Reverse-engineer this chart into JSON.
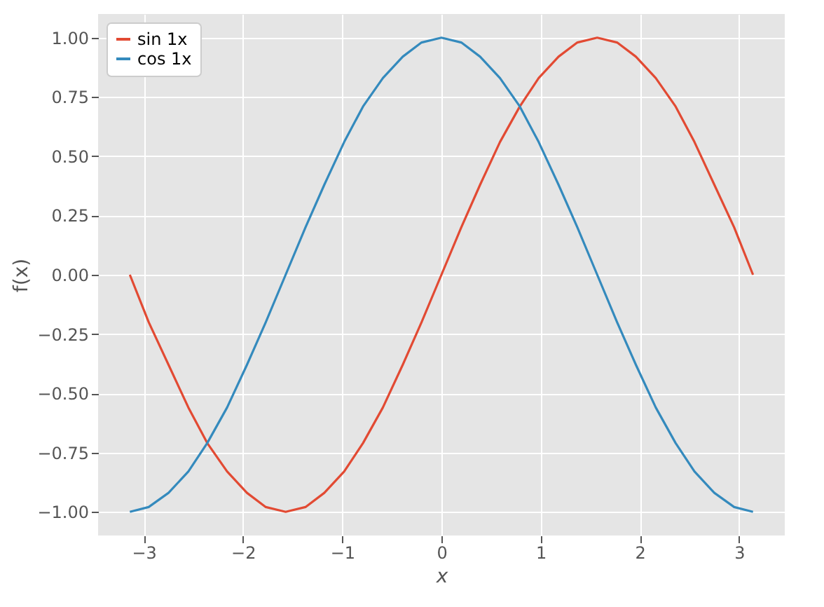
{
  "chart_data": {
    "type": "line",
    "xlabel": "x",
    "ylabel": "f(x)",
    "x": [
      -3.14,
      -2.95,
      -2.75,
      -2.55,
      -2.36,
      -2.16,
      -1.96,
      -1.77,
      -1.57,
      -1.37,
      -1.18,
      -0.98,
      -0.79,
      -0.59,
      -0.39,
      -0.2,
      0,
      0.2,
      0.39,
      0.59,
      0.79,
      0.98,
      1.18,
      1.37,
      1.57,
      1.77,
      1.96,
      2.16,
      2.36,
      2.55,
      2.75,
      2.95,
      3.14
    ],
    "series": [
      {
        "name": "sin 1x",
        "color": "#e24a33",
        "values": [
          0,
          -0.2,
          -0.38,
          -0.56,
          -0.71,
          -0.83,
          -0.92,
          -0.98,
          -1,
          -0.98,
          -0.92,
          -0.83,
          -0.71,
          -0.56,
          -0.38,
          -0.2,
          0,
          0.2,
          0.38,
          0.56,
          0.71,
          0.83,
          0.92,
          0.98,
          1,
          0.98,
          0.92,
          0.83,
          0.71,
          0.56,
          0.38,
          0.2,
          0
        ]
      },
      {
        "name": "cos 1x",
        "color": "#348abd",
        "values": [
          -1,
          -0.98,
          -0.92,
          -0.83,
          -0.71,
          -0.56,
          -0.38,
          -0.2,
          0,
          0.2,
          0.38,
          0.56,
          0.71,
          0.83,
          0.92,
          0.98,
          1,
          0.98,
          0.92,
          0.83,
          0.71,
          0.56,
          0.38,
          0.2,
          0,
          -0.2,
          -0.38,
          -0.56,
          -0.71,
          -0.83,
          -0.92,
          -0.98,
          -1
        ]
      }
    ],
    "xlim": [
      -3.46,
      3.46
    ],
    "xticks": [
      {
        "value": -3,
        "label": "−3"
      },
      {
        "value": -2,
        "label": "−2"
      },
      {
        "value": -1,
        "label": "−1"
      },
      0,
      1,
      2,
      3
    ],
    "ylim": [
      -1.1,
      1.1
    ],
    "yticks": [
      {
        "value": -1,
        "label": "−1.00"
      },
      {
        "value": -0.75,
        "label": "−0.75"
      },
      {
        "value": -0.5,
        "label": "−0.50"
      },
      {
        "value": -0.25,
        "label": "−0.25"
      },
      {
        "value": 0,
        "label": "0.00"
      },
      {
        "value": 0.25,
        "label": "0.25"
      },
      {
        "value": 0.5,
        "label": "0.50"
      },
      {
        "value": 0.75,
        "label": "0.75"
      },
      {
        "value": 1,
        "label": "1.00"
      }
    ],
    "grid": true,
    "legend": "top left",
    "marker": "none",
    "line_style": "solid"
  }
}
